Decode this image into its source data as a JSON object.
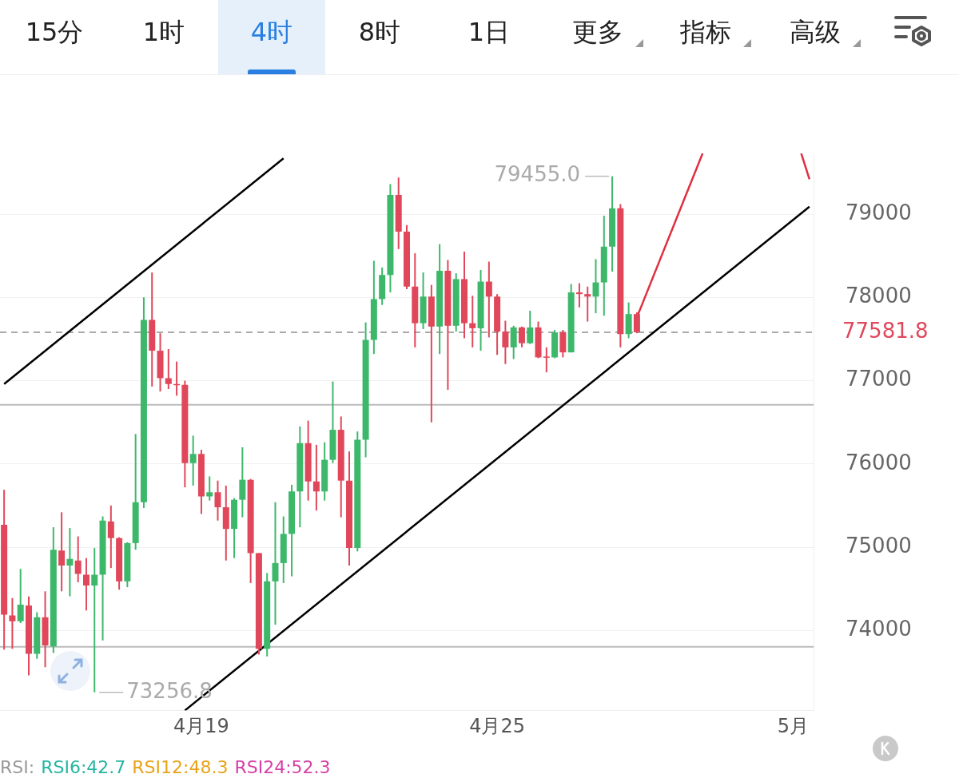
{
  "chart_data": {
    "type": "candlestick",
    "categories": [
      null,
      null,
      null,
      null,
      null,
      null,
      null,
      null,
      null,
      null,
      null,
      null,
      null,
      null,
      null,
      null,
      null,
      null,
      null,
      null,
      null,
      null,
      null,
      null,
      "4月19",
      null,
      null,
      null,
      null,
      null,
      null,
      null,
      null,
      null,
      null,
      null,
      null,
      null,
      null,
      null,
      null,
      null,
      null,
      null,
      null,
      null,
      null,
      null,
      null,
      null,
      null,
      null,
      null,
      null,
      null,
      null,
      null,
      null,
      null,
      null,
      "4月25",
      null,
      null,
      null,
      null,
      null,
      null,
      null,
      null,
      null,
      null,
      null,
      null,
      null,
      null,
      null,
      null,
      null,
      null,
      null,
      null,
      null,
      null,
      null,
      null,
      null,
      null,
      null,
      null,
      null,
      null,
      null,
      null,
      null,
      null,
      null,
      "5月",
      null,
      null
    ],
    "ohlc": [
      [
        75270,
        75690,
        73770,
        74190
      ],
      [
        74180,
        74390,
        73780,
        74110
      ],
      [
        74110,
        74740,
        74090,
        74310
      ],
      [
        74300,
        74410,
        73460,
        73720
      ],
      [
        73720,
        74220,
        73660,
        74160
      ],
      [
        74160,
        74470,
        73560,
        73820
      ],
      [
        73810,
        75240,
        73730,
        74970
      ],
      [
        74960,
        75420,
        74470,
        74780
      ],
      [
        74780,
        75230,
        74410,
        74860
      ],
      [
        74840,
        75130,
        74580,
        74680
      ],
      [
        74670,
        74870,
        74240,
        74540
      ],
      [
        74540,
        74990,
        73256.8,
        74670
      ],
      [
        74670,
        75370,
        73880,
        75320
      ],
      [
        75310,
        75500,
        74750,
        75110
      ],
      [
        75110,
        75120,
        74490,
        74590
      ],
      [
        74590,
        75060,
        74520,
        75050
      ],
      [
        75050,
        76360,
        74970,
        75540
      ],
      [
        75540,
        78000,
        75470,
        77730
      ],
      [
        77730,
        78300,
        76930,
        77360
      ],
      [
        77360,
        77570,
        76870,
        77030
      ],
      [
        77030,
        77380,
        76900,
        76960
      ],
      [
        76960,
        77230,
        76820,
        76950
      ],
      [
        76950,
        77000,
        75720,
        76010
      ],
      [
        76010,
        76340,
        75740,
        76120
      ],
      [
        76120,
        76170,
        75400,
        75610
      ],
      [
        75610,
        75850,
        75560,
        75660
      ],
      [
        75660,
        75800,
        75320,
        75480
      ],
      [
        75480,
        75740,
        74840,
        75220
      ],
      [
        75220,
        75590,
        74870,
        75570
      ],
      [
        75570,
        76200,
        75360,
        75810
      ],
      [
        75810,
        75820,
        74570,
        74930
      ],
      [
        74930,
        74930,
        73710,
        73780
      ],
      [
        73780,
        74690,
        73690,
        74590
      ],
      [
        74590,
        75540,
        74070,
        74810
      ],
      [
        74810,
        75370,
        74570,
        75160
      ],
      [
        75160,
        75750,
        74650,
        75670
      ],
      [
        75670,
        76450,
        75240,
        76250
      ],
      [
        76250,
        76520,
        75560,
        75790
      ],
      [
        75790,
        76230,
        75440,
        75670
      ],
      [
        75670,
        76260,
        75560,
        76050
      ],
      [
        76050,
        76990,
        76010,
        76410
      ],
      [
        76410,
        76570,
        75360,
        75800
      ],
      [
        75800,
        76150,
        74780,
        74990
      ],
      [
        74990,
        76390,
        74950,
        76290
      ],
      [
        76290,
        77700,
        76080,
        77490
      ],
      [
        77490,
        78440,
        77320,
        77980
      ],
      [
        77980,
        78360,
        77910,
        78270
      ],
      [
        78270,
        79360,
        78060,
        79230
      ],
      [
        79230,
        79440,
        78580,
        78790
      ],
      [
        78790,
        78870,
        78100,
        78130
      ],
      [
        78130,
        78530,
        77400,
        77690
      ],
      [
        77690,
        78300,
        77620,
        78010
      ],
      [
        78010,
        78150,
        76500,
        77650
      ],
      [
        77650,
        78640,
        77320,
        78320
      ],
      [
        78320,
        78450,
        76890,
        77660
      ],
      [
        77660,
        78290,
        77590,
        78220
      ],
      [
        78220,
        78550,
        77510,
        77690
      ],
      [
        77690,
        78020,
        77400,
        77630
      ],
      [
        77630,
        78330,
        77360,
        78190
      ],
      [
        78190,
        78430,
        77520,
        78010
      ],
      [
        78010,
        78040,
        77310,
        77590
      ],
      [
        77590,
        77720,
        77200,
        77400
      ],
      [
        77400,
        77660,
        77260,
        77640
      ],
      [
        77640,
        77650,
        77400,
        77450
      ],
      [
        77450,
        77840,
        77440,
        77640
      ],
      [
        77640,
        77710,
        77270,
        77280
      ],
      [
        77290,
        77400,
        77100,
        77280
      ],
      [
        77280,
        77610,
        77270,
        77580
      ],
      [
        77580,
        77610,
        77280,
        77340
      ],
      [
        77340,
        78160,
        77340,
        78060
      ],
      [
        78060,
        78170,
        77880,
        78040
      ],
      [
        78040,
        78130,
        77710,
        78010
      ],
      [
        78010,
        78460,
        77810,
        78180
      ],
      [
        78180,
        78980,
        77780,
        78610
      ],
      [
        78610,
        79455.0,
        78310,
        79070
      ],
      [
        79070,
        79120,
        77400,
        77560
      ],
      [
        77560,
        77940,
        77510,
        77800
      ],
      [
        77800,
        77820,
        77570,
        77581.8
      ],
      null,
      null,
      null,
      null,
      null,
      null,
      null,
      null,
      null,
      null,
      null,
      null,
      null,
      null,
      null,
      null,
      null,
      null,
      null,
      null,
      null
    ],
    "colors": [
      "#e0475b",
      "#e0475b",
      "#3db86b",
      "#e0475b",
      "#3db86b",
      "#e0475b",
      "#3db86b",
      "#e0475b",
      "#3db86b",
      "#e0475b",
      "#e0475b",
      "#3db86b",
      "#3db86b",
      "#e0475b",
      "#e0475b",
      "#3db86b",
      "#3db86b",
      "#3db86b",
      "#e0475b",
      "#e0475b",
      "#e0475b",
      "#e0475b",
      "#e0475b",
      "#3db86b",
      "#e0475b",
      "#3db86b",
      "#e0475b",
      "#e0475b",
      "#3db86b",
      "#3db86b",
      "#e0475b",
      "#e0475b",
      "#3db86b",
      "#3db86b",
      "#3db86b",
      "#3db86b",
      "#3db86b",
      "#e0475b",
      "#e0475b",
      "#3db86b",
      "#3db86b",
      "#e0475b",
      "#e0475b",
      "#3db86b",
      "#3db86b",
      "#3db86b",
      "#3db86b",
      "#3db86b",
      "#e0475b",
      "#e0475b",
      "#e0475b",
      "#3db86b",
      "#e0475b",
      "#3db86b",
      "#e0475b",
      "#3db86b",
      "#e0475b",
      "#e0475b",
      "#3db86b",
      "#e0475b",
      "#e0475b",
      "#e0475b",
      "#3db86b",
      "#e0475b",
      "#3db86b",
      "#e0475b",
      "#e0475b",
      "#3db86b",
      "#e0475b",
      "#3db86b",
      "#e0475b",
      "#e0475b",
      "#3db86b",
      "#3db86b",
      "#3db86b",
      "#e0475b",
      "#3db86b",
      "#e0475b",
      null,
      null,
      null,
      null,
      null,
      null,
      null,
      null,
      null,
      null,
      null,
      null,
      null,
      null,
      null,
      null,
      null,
      null,
      null,
      null,
      null
    ],
    "series": [
      {
        "type": "line",
        "color": "#000000",
        "values": [
          null,
          null,
          null,
          null,
          null,
          null,
          null,
          null,
          null,
          null,
          null,
          null,
          null,
          null,
          null,
          null,
          null,
          null,
          null,
          null,
          null,
          null,
          73040,
          null,
          null,
          null,
          null,
          null,
          null,
          null,
          null,
          null,
          null,
          null,
          null,
          null,
          null,
          null,
          null,
          null,
          null,
          null,
          null,
          null,
          null,
          null,
          null,
          null,
          null,
          null,
          null,
          null,
          null,
          null,
          null,
          null,
          null,
          null,
          null,
          null,
          null,
          null,
          null,
          null,
          null,
          null,
          null,
          null,
          null,
          null,
          null,
          null,
          null,
          null,
          null,
          null,
          null,
          null,
          null,
          null,
          null,
          null,
          null,
          null,
          null,
          null,
          null,
          null,
          null,
          null,
          null,
          null,
          null,
          null,
          null,
          null,
          null,
          null,
          79090
        ]
      },
      {
        "type": "line",
        "color": "#000000",
        "values": [
          76960,
          null,
          null,
          null,
          null,
          null,
          null,
          null,
          null,
          null,
          null,
          null,
          null,
          null,
          null,
          null,
          null,
          null,
          null,
          null,
          null,
          null,
          null,
          null,
          null,
          null,
          null,
          null,
          null,
          null,
          null,
          null,
          null,
          null,
          79670,
          null,
          null,
          null,
          null,
          null,
          null,
          null,
          null,
          null,
          null,
          null,
          null,
          null,
          null,
          null,
          null,
          null,
          null,
          null,
          null,
          null,
          null,
          null,
          null,
          null,
          null,
          null,
          null,
          null,
          null,
          null,
          null,
          null,
          null,
          null,
          null,
          null,
          null,
          null,
          null,
          null,
          null,
          null,
          null,
          null,
          null,
          null,
          null,
          null,
          null,
          null,
          null,
          null,
          null,
          null,
          null,
          null,
          null,
          null,
          null,
          null,
          null,
          null,
          null
        ]
      },
      {
        "type": "line",
        "color": "#e03040",
        "values": [
          null,
          null,
          null,
          null,
          null,
          null,
          null,
          null,
          null,
          null,
          null,
          null,
          null,
          null,
          null,
          null,
          null,
          null,
          null,
          null,
          null,
          null,
          null,
          null,
          null,
          null,
          null,
          null,
          null,
          null,
          null,
          null,
          null,
          null,
          null,
          null,
          null,
          null,
          null,
          null,
          null,
          null,
          null,
          null,
          null,
          null,
          null,
          null,
          null,
          null,
          null,
          null,
          null,
          null,
          null,
          null,
          null,
          null,
          null,
          null,
          null,
          null,
          null,
          null,
          null,
          null,
          null,
          null,
          null,
          null,
          null,
          null,
          null,
          null,
          null,
          null,
          null,
          77760,
          null,
          null,
          null,
          null,
          null,
          null,
          null,
          79730,
          null,
          null,
          null,
          null,
          null,
          null,
          null,
          null,
          null,
          null,
          null,
          null,
          null
        ]
      },
      {
        "type": "line",
        "color": "#e03040",
        "values": [
          null,
          null,
          null,
          null,
          null,
          null,
          null,
          null,
          null,
          null,
          null,
          null,
          null,
          null,
          null,
          null,
          null,
          null,
          null,
          null,
          null,
          null,
          null,
          null,
          null,
          null,
          null,
          null,
          null,
          null,
          null,
          null,
          null,
          null,
          null,
          null,
          null,
          null,
          null,
          null,
          null,
          null,
          null,
          null,
          null,
          null,
          null,
          null,
          null,
          null,
          null,
          null,
          null,
          null,
          null,
          null,
          null,
          null,
          null,
          null,
          null,
          null,
          null,
          null,
          null,
          null,
          null,
          null,
          null,
          null,
          null,
          null,
          null,
          null,
          null,
          null,
          null,
          null,
          null,
          null,
          null,
          null,
          null,
          null,
          null,
          null,
          null,
          null,
          null,
          null,
          null,
          null,
          null,
          null,
          null,
          null,
          null,
          79730,
          79420
        ]
      }
    ],
    "ylim": [
      73040,
      79730
    ],
    "yticks": [
      74000,
      75000,
      76000,
      77000,
      78000,
      79000
    ],
    "grid": "y",
    "ref_lines": [
      {
        "axis": "y",
        "value": 77581.8,
        "label": "77581.8",
        "color": "#aaaaaa",
        "line_style": "dashed"
      },
      {
        "axis": "y",
        "value": 76710,
        "color": "#bbbbbb"
      },
      {
        "axis": "y",
        "value": 73805,
        "color": "#bbbbbb"
      }
    ],
    "annotations": [
      "15分",
      "1时",
      "4时",
      "8时",
      "1日",
      "更多",
      "指标",
      "高级",
      "RSI:",
      "RSI6:42.7",
      "RSI12:48.3",
      "RSI24:52.3",
      "79455.0",
      "73256.8"
    ]
  }
}
